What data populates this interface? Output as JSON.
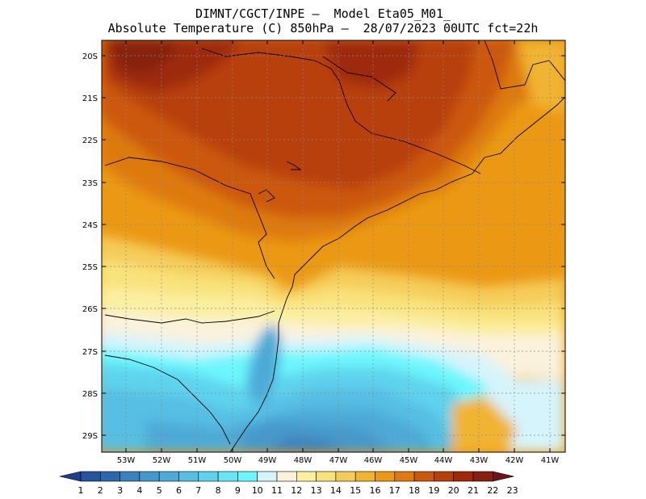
{
  "title_line1": "DIMNT/CGCT/INPE –  Model Eta05_M01_",
  "title_line2": "Absolute Temperature (C) 850hPa –  28/07/2023 00UTC fct=22h",
  "lat_labels": [
    "20S",
    "21S",
    "22S",
    "23S",
    "24S",
    "25S",
    "26S",
    "27S",
    "28S",
    "29S"
  ],
  "lon_labels": [
    "53W",
    "52W",
    "51W",
    "50W",
    "49W",
    "48W",
    "47W",
    "46W",
    "45W",
    "44W",
    "43W",
    "42W",
    "41W"
  ],
  "colorbar_labels": [
    "1",
    "2",
    "3",
    "4",
    "5",
    "6",
    "7",
    "8",
    "9",
    "10",
    "11",
    "12",
    "13",
    "14",
    "15",
    "16",
    "17",
    "18",
    "19",
    "20",
    "21",
    "22",
    "23"
  ],
  "colorbar_colors": [
    "#1d3f8f",
    "#25539e",
    "#2d68ad",
    "#3a82bf",
    "#4499cc",
    "#4eaad8",
    "#56bfe3",
    "#5fd3ee",
    "#66e6f7",
    "#6cf7fd",
    "#d6f4fb",
    "#fbf2dc",
    "#fbefa0",
    "#f9e27a",
    "#f5cc58",
    "#f1b431",
    "#eb9914",
    "#de7a10",
    "#cc580d",
    "#b8410b",
    "#9e2a0a",
    "#862010",
    "#70141a"
  ],
  "map": {
    "region": "Southern Brazil 20S-29.5S / 53.7W-40.4W",
    "field": "temperature_850hPa_C"
  }
}
